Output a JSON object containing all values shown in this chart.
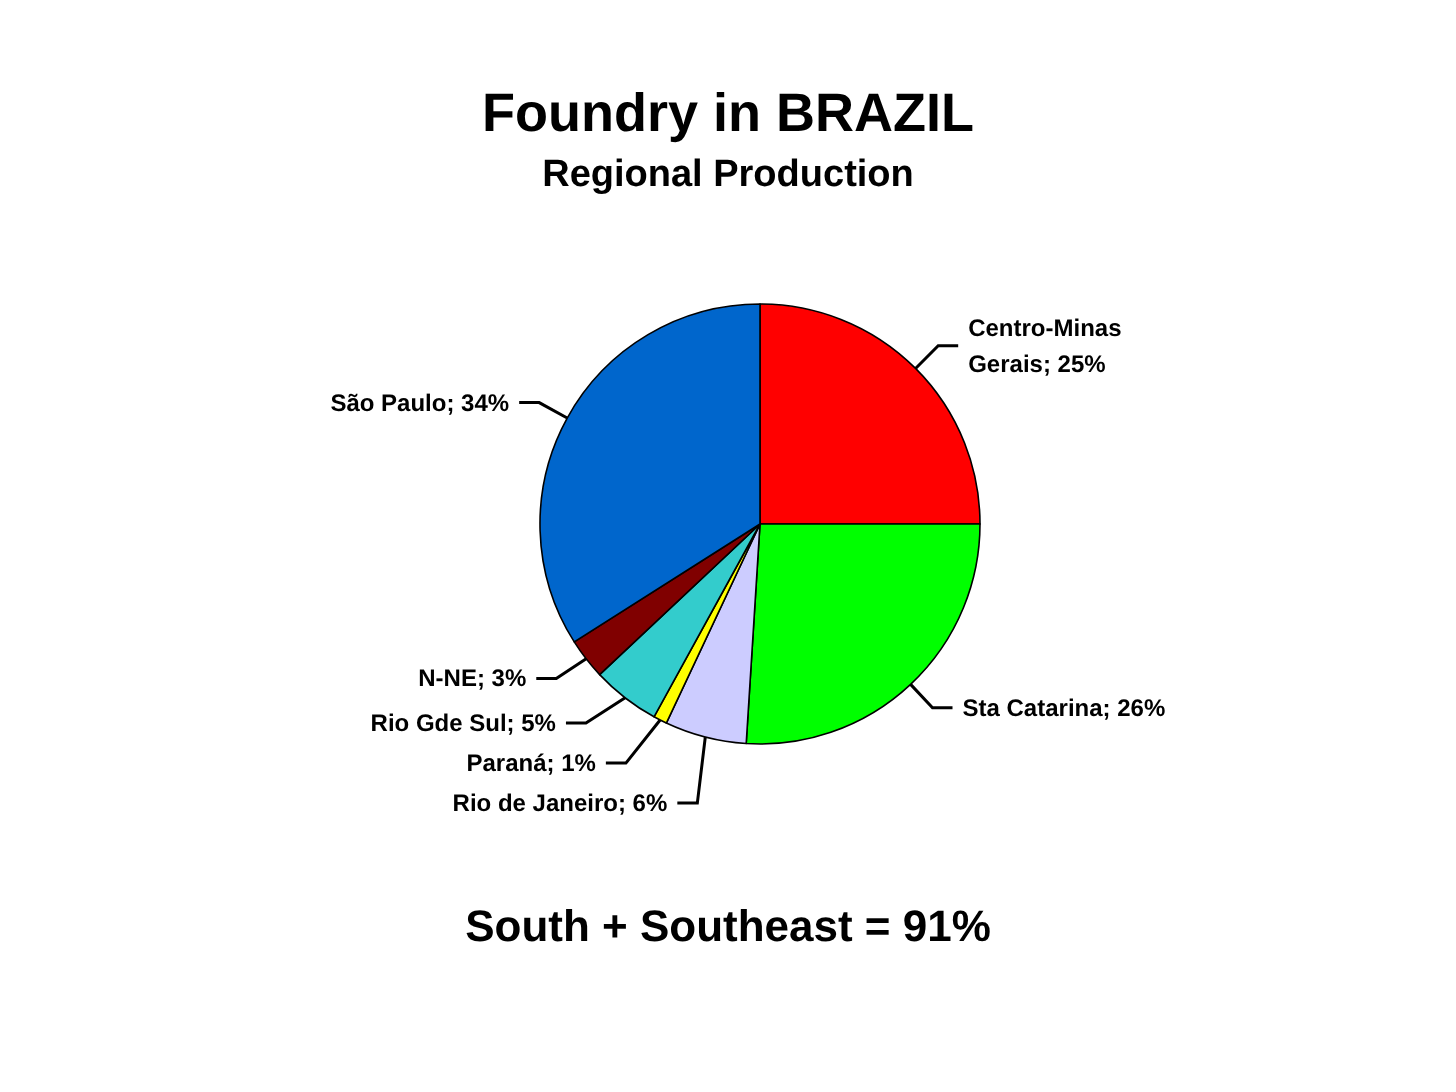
{
  "chart_data": {
    "type": "pie",
    "title": "Foundry in BRAZIL",
    "subtitle": "Regional Production",
    "categories": [
      "Centro-Minas Gerais",
      "Sta Catarina",
      "Rio de Janeiro",
      "Paraná",
      "Rio Gde Sul",
      "N-NE",
      "São Paulo"
    ],
    "values": [
      25,
      26,
      6,
      1,
      5,
      3,
      34
    ],
    "colors": [
      "#ff0000",
      "#00ff00",
      "#ccccff",
      "#ffff00",
      "#33cccc",
      "#800000",
      "#0066cc"
    ],
    "value_labels": [
      "25%",
      "26%",
      "6%",
      "1%",
      "5%",
      "3%",
      "34%"
    ],
    "annotations": [
      "South + Southeast = 91%"
    ]
  }
}
